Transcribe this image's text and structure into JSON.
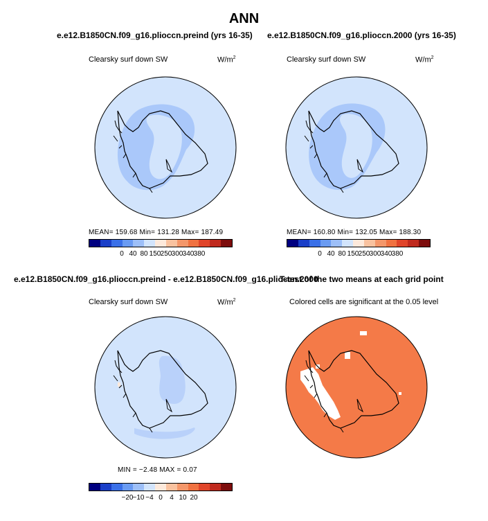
{
  "figure": {
    "title": "ANN"
  },
  "panels": [
    {
      "title": "e.e12.B1850CN.f09_g16.plioccn.preind (yrs 16-35)",
      "subtitle": "Clearsky surf down SW",
      "units_base": "W/m",
      "units_exp": "2",
      "stats": "MEAN= 159.68   Min= 131.28   Max= 187.49"
    },
    {
      "title": "e.e12.B1850CN.f09_g16.plioccn.2000 (yrs 16-35)",
      "subtitle": "Clearsky surf down SW",
      "units_base": "W/m",
      "units_exp": "2",
      "stats": "MEAN= 160.80   Min= 132.05   Max= 188.30"
    },
    {
      "title": "e.e12.B1850CN.f09_g16.plioccn.preind - e.e12.B1850CN.f09_g16.plioccn.2000",
      "subtitle": "Clearsky surf down SW",
      "units_base": "W/m",
      "units_exp": "2",
      "stats": "MIN =   −2.48  MAX =     0.07"
    },
    {
      "title": "T-test of the two means at each grid point",
      "subtitle": "Colored cells are significant at the 0.05 level"
    }
  ],
  "colorbars": {
    "abs": {
      "colors": [
        "#000080",
        "#1a3fc8",
        "#3a70e8",
        "#6a9bf2",
        "#9dbff8",
        "#d2e4fc",
        "#fde9db",
        "#f9c29f",
        "#f4976a",
        "#f07241",
        "#e0452a",
        "#c02a1e",
        "#7d0d0d"
      ],
      "ticks": [
        "0",
        "40",
        "80",
        "150",
        "250",
        "300",
        "340",
        "380"
      ]
    },
    "diff": {
      "colors": [
        "#000080",
        "#1a3fc8",
        "#3a70e8",
        "#6a9bf2",
        "#9dbff8",
        "#d2e4fc",
        "#fde9db",
        "#f9c29f",
        "#f4976a",
        "#f07241",
        "#e0452a",
        "#c02a1e",
        "#7d0d0d"
      ],
      "ticks": [
        "−20",
        "−10",
        "−4",
        "0",
        "4",
        "10",
        "20"
      ]
    }
  },
  "chart_data": [
    {
      "type": "heatmap",
      "title": "e.e12.B1850CN.f09_g16.plioccn.preind (yrs 16-35)",
      "variable": "Clearsky surf down SW",
      "units": "W/m2",
      "projection": "south polar stereographic",
      "mean": 159.68,
      "min": 131.28,
      "max": 187.49,
      "contour_levels": [
        0,
        40,
        80,
        150,
        250,
        300,
        340,
        380
      ]
    },
    {
      "type": "heatmap",
      "title": "e.e12.B1850CN.f09_g16.plioccn.2000 (yrs 16-35)",
      "variable": "Clearsky surf down SW",
      "units": "W/m2",
      "projection": "south polar stereographic",
      "mean": 160.8,
      "min": 132.05,
      "max": 188.3,
      "contour_levels": [
        0,
        40,
        80,
        150,
        250,
        300,
        340,
        380
      ]
    },
    {
      "type": "heatmap",
      "title": "e.e12.B1850CN.f09_g16.plioccn.preind - e.e12.B1850CN.f09_g16.plioccn.2000",
      "variable": "Clearsky surf down SW",
      "units": "W/m2",
      "projection": "south polar stereographic",
      "min": -2.48,
      "max": 0.07,
      "contour_levels": [
        -20,
        -10,
        -4,
        0,
        4,
        10,
        20
      ]
    },
    {
      "type": "heatmap",
      "title": "T-test of the two means at each grid point",
      "note": "Colored cells are significant at the 0.05 level",
      "significance_level": 0.05,
      "projection": "south polar stereographic"
    }
  ]
}
